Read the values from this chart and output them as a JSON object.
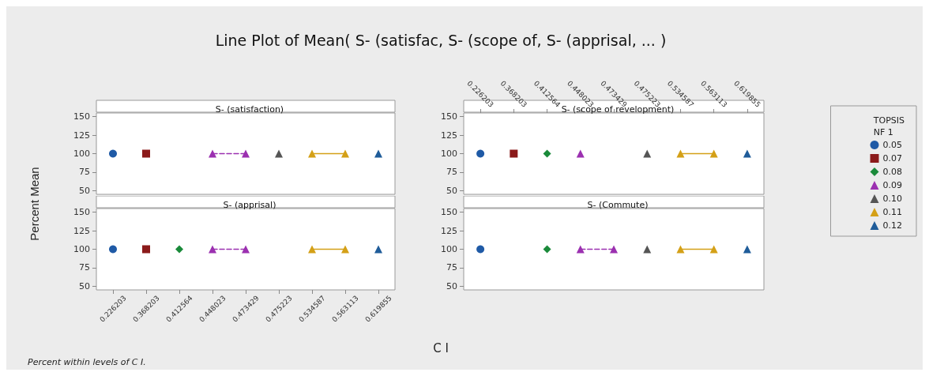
{
  "chart_data": [
    {
      "type": "other",
      "title": "Line Plot of Mean( S- (satisfac, S- (scope of, S- (apprisal, ... )",
      "xlabel": "C I",
      "ylabel": "Percent Mean",
      "annotations": [
        "Percent within levels of C I."
      ]
    },
    {
      "type": "line",
      "title": "S- (satisfaction)",
      "tick_labels": "y",
      "categories": [
        "0.226203",
        "0.368203",
        "0.412564",
        "0.448023",
        "0.473429",
        "0.475223",
        "0.534587",
        "0.563113",
        "0.619855"
      ],
      "ylim": [
        45,
        155
      ],
      "yticks": [
        50,
        75,
        100,
        125,
        150
      ],
      "series": [
        {
          "color": "#1f5aa6",
          "marker": "circle",
          "line_style": "solid",
          "values": [
            100,
            null,
            null,
            null,
            null,
            null,
            null,
            null,
            null
          ]
        },
        {
          "color": "#8b1a1a",
          "marker": "square",
          "line_style": "solid",
          "values": [
            null,
            100,
            null,
            null,
            null,
            null,
            null,
            null,
            null
          ]
        },
        {
          "color": "#9b30b0",
          "marker": "triangle",
          "line_style": "dashed",
          "values": [
            null,
            null,
            null,
            100,
            100,
            null,
            null,
            null,
            null
          ]
        },
        {
          "color": "#555555",
          "marker": "triangle",
          "line_style": "dashed",
          "values": [
            null,
            null,
            null,
            null,
            null,
            100,
            null,
            null,
            null
          ]
        },
        {
          "color": "#d4a017",
          "marker": "triangle",
          "line_style": "solid",
          "values": [
            null,
            null,
            null,
            null,
            null,
            null,
            100,
            100,
            null
          ]
        },
        {
          "color": "#1f5c99",
          "marker": "triangle",
          "line_style": "solid",
          "values": [
            null,
            null,
            null,
            null,
            null,
            null,
            null,
            null,
            100
          ]
        }
      ]
    },
    {
      "type": "line",
      "title": "S- (scope of revelopment)",
      "legend": "right",
      "legend_title": "TOPSIS\nNF 1",
      "categories": [
        "0.226203",
        "0.368203",
        "0.412564",
        "0.448023",
        "0.473429",
        "0.475223",
        "0.534587",
        "0.563113",
        "0.619855"
      ],
      "ylim": [
        45,
        155
      ],
      "yticks": [
        50,
        75,
        100,
        125,
        150
      ],
      "series": [
        {
          "name": "0.05",
          "color": "#1f5aa6",
          "marker": "circle",
          "line_style": "solid",
          "values": [
            100,
            null,
            null,
            null,
            null,
            null,
            null,
            null,
            null
          ]
        },
        {
          "name": "0.07",
          "color": "#8b1a1a",
          "marker": "square",
          "line_style": "solid",
          "values": [
            null,
            100,
            null,
            null,
            null,
            null,
            null,
            null,
            null
          ]
        },
        {
          "name": "0.08",
          "color": "#1a8a3a",
          "marker": "diamond",
          "line_style": "dashed",
          "values": [
            null,
            null,
            100,
            null,
            null,
            null,
            null,
            null,
            null
          ]
        },
        {
          "name": "0.09",
          "color": "#9b30b0",
          "marker": "triangle",
          "line_style": "dashed",
          "values": [
            null,
            null,
            null,
            100,
            null,
            null,
            null,
            null,
            null
          ]
        },
        {
          "name": "0.10",
          "color": "#555555",
          "marker": "triangle",
          "line_style": "dashed",
          "values": [
            null,
            null,
            null,
            null,
            null,
            100,
            null,
            null,
            null
          ]
        },
        {
          "name": "0.11",
          "color": "#d4a017",
          "marker": "triangle",
          "line_style": "solid",
          "values": [
            null,
            null,
            null,
            null,
            null,
            null,
            100,
            100,
            null
          ]
        },
        {
          "name": "0.12",
          "color": "#1f5c99",
          "marker": "triangle",
          "line_style": "solid",
          "values": [
            null,
            null,
            null,
            null,
            null,
            null,
            null,
            null,
            100
          ]
        }
      ]
    },
    {
      "type": "line",
      "title": "S- (apprisal)",
      "categories": [
        "0.226203",
        "0.368203",
        "0.412564",
        "0.448023",
        "0.473429",
        "0.475223",
        "0.534587",
        "0.563113",
        "0.619855"
      ],
      "ylim": [
        45,
        155
      ],
      "yticks": [
        50,
        75,
        100,
        125,
        150
      ],
      "series": [
        {
          "color": "#1f5aa6",
          "marker": "circle",
          "line_style": "solid",
          "values": [
            100,
            null,
            null,
            null,
            null,
            null,
            null,
            null,
            null
          ]
        },
        {
          "color": "#8b1a1a",
          "marker": "square",
          "line_style": "solid",
          "values": [
            null,
            100,
            null,
            null,
            null,
            null,
            null,
            null,
            null
          ]
        },
        {
          "color": "#1a8a3a",
          "marker": "diamond",
          "line_style": "dashed",
          "values": [
            null,
            null,
            100,
            null,
            null,
            null,
            null,
            null,
            null
          ]
        },
        {
          "color": "#9b30b0",
          "marker": "triangle",
          "line_style": "dashed",
          "values": [
            null,
            null,
            null,
            100,
            100,
            null,
            null,
            null,
            null
          ]
        },
        {
          "color": "#d4a017",
          "marker": "triangle",
          "line_style": "solid",
          "values": [
            null,
            null,
            null,
            null,
            null,
            null,
            100,
            100,
            null
          ]
        },
        {
          "color": "#1f5c99",
          "marker": "triangle",
          "line_style": "solid",
          "values": [
            null,
            null,
            null,
            null,
            null,
            null,
            null,
            null,
            100
          ]
        }
      ]
    },
    {
      "type": "line",
      "title": "S- (Commute)",
      "tick_labels": "y",
      "categories": [
        "0.226203",
        "0.368203",
        "0.412564",
        "0.448023",
        "0.473429",
        "0.475223",
        "0.534587",
        "0.563113",
        "0.619855"
      ],
      "ylim": [
        45,
        155
      ],
      "yticks": [
        50,
        75,
        100,
        125,
        150
      ],
      "series": [
        {
          "color": "#1f5aa6",
          "marker": "circle",
          "line_style": "solid",
          "values": [
            100,
            null,
            null,
            null,
            null,
            null,
            null,
            null,
            null
          ]
        },
        {
          "color": "#1a8a3a",
          "marker": "diamond",
          "line_style": "dashed",
          "values": [
            null,
            null,
            100,
            null,
            null,
            null,
            null,
            null,
            null
          ]
        },
        {
          "color": "#9b30b0",
          "marker": "triangle",
          "line_style": "dashed",
          "values": [
            null,
            null,
            null,
            100,
            100,
            null,
            null,
            null,
            null
          ]
        },
        {
          "color": "#555555",
          "marker": "triangle",
          "line_style": "dashed",
          "values": [
            null,
            null,
            null,
            null,
            null,
            100,
            null,
            null,
            null
          ]
        },
        {
          "color": "#d4a017",
          "marker": "triangle",
          "line_style": "solid",
          "values": [
            null,
            null,
            null,
            null,
            null,
            null,
            100,
            100,
            null
          ]
        },
        {
          "color": "#1f5c99",
          "marker": "triangle",
          "line_style": "solid",
          "values": [
            null,
            null,
            null,
            null,
            null,
            null,
            null,
            null,
            100
          ]
        }
      ]
    }
  ]
}
